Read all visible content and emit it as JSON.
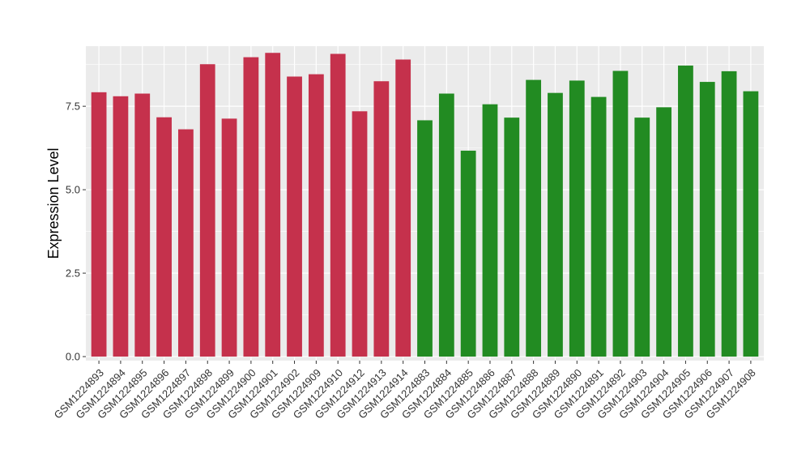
{
  "chart_data": {
    "type": "bar",
    "title": "",
    "xlabel": "",
    "ylabel": "Expression Level",
    "ylim": [
      -0.12,
      9.3
    ],
    "yticks": [
      0.0,
      2.5,
      5.0,
      7.5
    ],
    "ytick_labels": [
      "0.0",
      "2.5",
      "5.0",
      "7.5"
    ],
    "grid": true,
    "legend": "none",
    "colors": {
      "group1": "#c5314c",
      "group2": "#228b22",
      "panel": "#ebebeb",
      "grid": "#ffffff"
    },
    "categories": [
      "GSM1224893",
      "GSM1224894",
      "GSM1224895",
      "GSM1224896",
      "GSM1224897",
      "GSM1224898",
      "GSM1224899",
      "GSM1224900",
      "GSM1224901",
      "GSM1224902",
      "GSM1224909",
      "GSM1224910",
      "GSM1224912",
      "GSM1224913",
      "GSM1224914",
      "GSM1224883",
      "GSM1224884",
      "GSM1224885",
      "GSM1224886",
      "GSM1224887",
      "GSM1224888",
      "GSM1224889",
      "GSM1224890",
      "GSM1224891",
      "GSM1224892",
      "GSM1224903",
      "GSM1224904",
      "GSM1224905",
      "GSM1224906",
      "GSM1224907",
      "GSM1224908"
    ],
    "values": [
      7.92,
      7.8,
      7.88,
      7.17,
      6.81,
      8.76,
      7.13,
      8.97,
      9.1,
      8.39,
      8.46,
      9.07,
      7.35,
      8.25,
      8.9,
      7.08,
      7.88,
      6.17,
      7.56,
      7.16,
      8.29,
      7.9,
      8.27,
      7.78,
      8.56,
      7.16,
      7.47,
      8.72,
      8.23,
      8.55,
      7.95
    ],
    "groups": [
      1,
      1,
      1,
      1,
      1,
      1,
      1,
      1,
      1,
      1,
      1,
      1,
      1,
      1,
      1,
      2,
      2,
      2,
      2,
      2,
      2,
      2,
      2,
      2,
      2,
      2,
      2,
      2,
      2,
      2,
      2
    ]
  }
}
